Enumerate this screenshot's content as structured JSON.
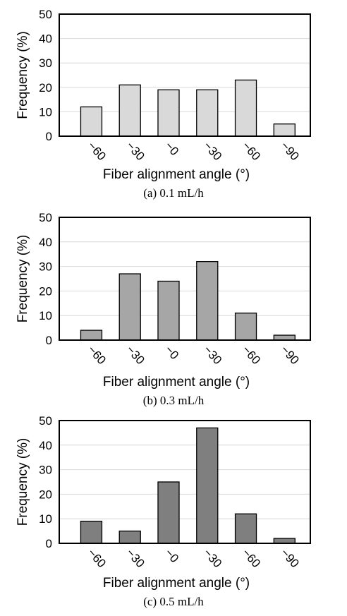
{
  "chart_data": [
    {
      "type": "bar",
      "caption": "(a) 0.1 mL/h",
      "xlabel": "Fiber alignment angle (°)",
      "ylabel": "Frequency (%)",
      "ylim": [
        0,
        50
      ],
      "yticks": [
        "0",
        "10",
        "20",
        "30",
        "40",
        "50"
      ],
      "categories": [
        "−60",
        "−30",
        "−0",
        "−30",
        "−60",
        "−90"
      ],
      "values": [
        12,
        21,
        19,
        19,
        23,
        5
      ],
      "bar_color": "#d9d9d9",
      "grid": true
    },
    {
      "type": "bar",
      "caption": "(b) 0.3 mL/h",
      "xlabel": "Fiber alignment angle (°)",
      "ylabel": "Frequency (%)",
      "ylim": [
        0,
        50
      ],
      "yticks": [
        "0",
        "10",
        "20",
        "30",
        "40",
        "50"
      ],
      "categories": [
        "−60",
        "−30",
        "−0",
        "−30",
        "−60",
        "−90"
      ],
      "values": [
        4,
        27,
        24,
        32,
        11,
        2
      ],
      "bar_color": "#a6a6a6",
      "grid": true
    },
    {
      "type": "bar",
      "caption": "(c) 0.5 mL/h",
      "xlabel": "Fiber alignment angle (°)",
      "ylabel": "Frequency (%)",
      "ylim": [
        0,
        50
      ],
      "yticks": [
        "0",
        "10",
        "20",
        "30",
        "40",
        "50"
      ],
      "categories": [
        "−60",
        "−30",
        "−0",
        "−30",
        "−60",
        "−90"
      ],
      "values": [
        9,
        5,
        25,
        47,
        12,
        2
      ],
      "bar_color": "#7f7f7f",
      "grid": true
    }
  ]
}
